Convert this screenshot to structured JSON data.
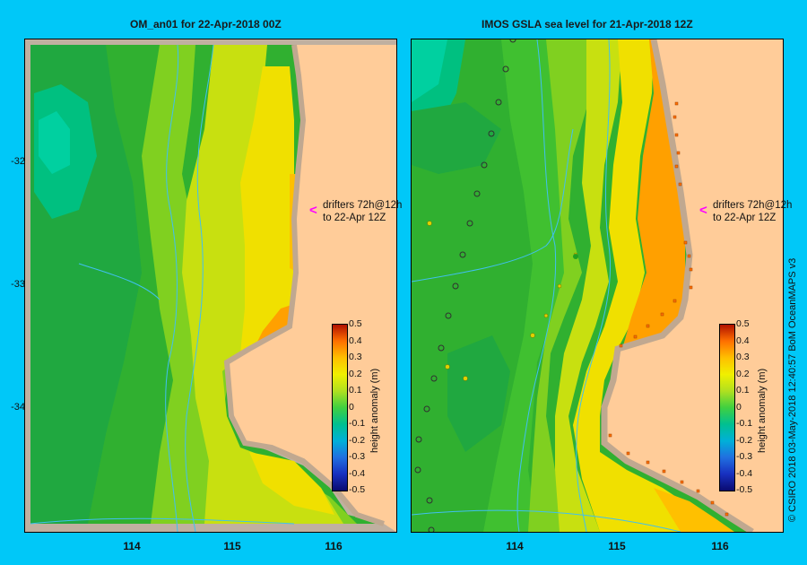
{
  "panels": [
    {
      "title": "OM_an01  for 22-Apr-2018 00Z",
      "drifter_note_line1": "drifters 72h@12h",
      "drifter_note_line2": "to 22-Apr 12Z",
      "colorbar_label": "height anomaly (m)"
    },
    {
      "title": "IMOS GSLA sea level  for 21-Apr-2018 12Z",
      "drifter_note_line1": "drifters 72h@12h",
      "drifter_note_line2": "to 22-Apr 12Z",
      "colorbar_label": "height anomaly (m)"
    }
  ],
  "axes": {
    "lat_labels": [
      "-32",
      "-33",
      "-34"
    ],
    "lon_labels": [
      "114",
      "115",
      "116"
    ]
  },
  "colorbar": {
    "ticks": [
      "0.5",
      "0.4",
      "0.3",
      "0.2",
      "0.1",
      "0",
      "-0.1",
      "-0.2",
      "-0.3",
      "-0.4",
      "-0.5"
    ],
    "range": [
      -0.5,
      0.5
    ],
    "colors": [
      "#0a0a70",
      "#1830c0",
      "#2070e0",
      "#00b0d8",
      "#00c090",
      "#40d040",
      "#b0e020",
      "#f0f000",
      "#ffc000",
      "#ff7000",
      "#b01000"
    ]
  },
  "credit": "© CSIRO 2018   03-May-2018 12:40:57 BoM OceanMAPS v3",
  "colors": {
    "background": "#00c8f8",
    "land": "#ffcc99",
    "coast": "#c0a890",
    "drifter_arrow": "#ff00ff",
    "contour_line": "#40c0f0"
  }
}
